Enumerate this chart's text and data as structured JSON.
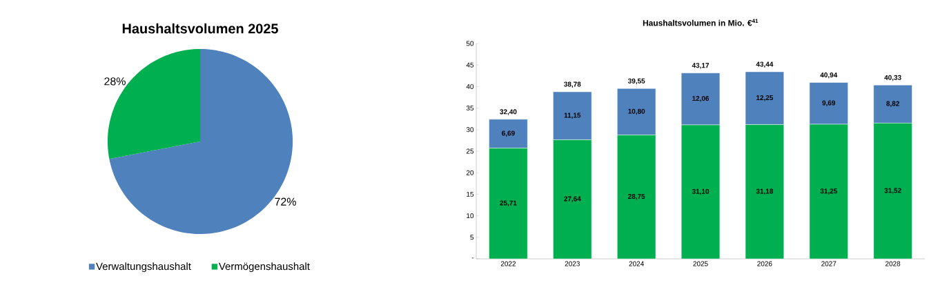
{
  "chart_data": [
    {
      "type": "pie",
      "title": "Haushaltsvolumen 2025",
      "categories": [
        "Verwaltungshaushalt",
        "Vermögenshaushalt"
      ],
      "values": [
        72,
        28
      ],
      "colors": [
        "#4f81bd",
        "#00b050"
      ],
      "value_labels": [
        "72%",
        "28%"
      ],
      "legend": "bottom"
    },
    {
      "type": "bar",
      "title": "Haushaltsvolumen in Mio. €$^{41}$",
      "categories": [
        "2022",
        "2023",
        "2024",
        "2025",
        "2026",
        "2027",
        "2028"
      ],
      "stacked": true,
      "series": [
        {
          "color": "#00b050",
          "values": [
            25.71,
            27.64,
            28.75,
            31.1,
            31.18,
            31.25,
            31.52
          ],
          "value_labels": [
            "25,71",
            "27,64",
            "28,75",
            "31,10",
            "31,18",
            "31,25",
            "31,52"
          ]
        },
        {
          "color": "#4f81bd",
          "values": [
            6.69,
            11.15,
            10.8,
            12.06,
            12.25,
            9.69,
            8.82
          ],
          "value_labels": [
            "6,69",
            "11,15",
            "10,80",
            "12,06",
            "12,25",
            "9,69",
            "8,82"
          ]
        }
      ],
      "totals": [
        "32,40",
        "38,78",
        "39,55",
        "43,17",
        "43,44",
        "40,94",
        "40,33"
      ],
      "ylim": [
        0,
        50
      ],
      "yticks": [
        {
          "value": 0,
          "label": "-"
        },
        5,
        10,
        15,
        20,
        25,
        30,
        35,
        40,
        45,
        50
      ]
    }
  ]
}
